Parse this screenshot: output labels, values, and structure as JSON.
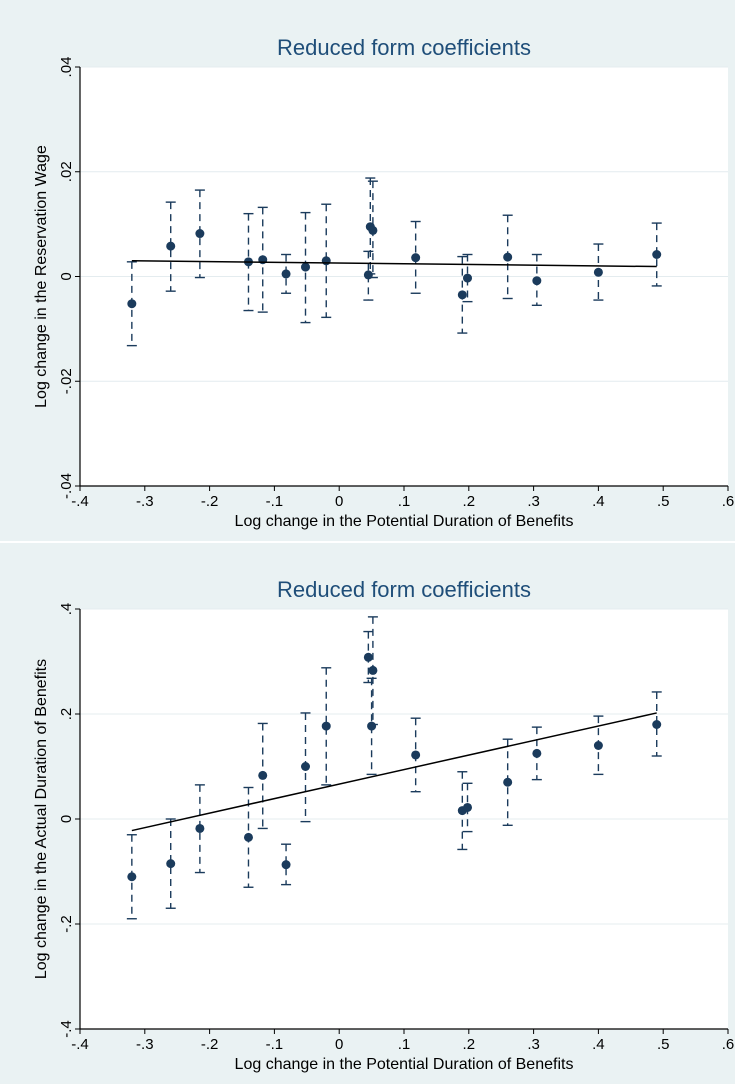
{
  "colors": {
    "outer_background": "#eaf2f3",
    "plot_background": "#ffffff",
    "title": "#1f4e79",
    "markers": "#1b3b5c",
    "fit_line": "#000000",
    "grid": "#e4ecef"
  },
  "chart_data": [
    {
      "type": "scatter",
      "title": "Reduced form coefficients",
      "xlabel": "Log change in the Potential Duration of Benefits",
      "ylabel": "Log change in the Reservation Wage",
      "xlim": [
        -0.4,
        0.6
      ],
      "ylim": [
        -0.04,
        0.04
      ],
      "xticks": [
        -0.4,
        -0.3,
        -0.2,
        -0.1,
        0,
        0.1,
        0.2,
        0.3,
        0.4,
        0.5,
        0.6
      ],
      "xtick_labels": [
        "-.4",
        "-.3",
        "-.2",
        "-.1",
        "0",
        ".1",
        ".2",
        ".3",
        ".4",
        ".5",
        ".6"
      ],
      "yticks": [
        -0.04,
        -0.02,
        0,
        0.02,
        0.04
      ],
      "ytick_labels": [
        "-.04",
        "-.02",
        "0",
        ".02",
        ".04"
      ],
      "grid": "horizontal",
      "series": [
        {
          "type": "scatter_with_error_bars",
          "points": [
            {
              "x": -0.32,
              "y": -0.0052,
              "lo": -0.0132,
              "hi": 0.0028
            },
            {
              "x": -0.26,
              "y": 0.0058,
              "lo": -0.0028,
              "hi": 0.0142
            },
            {
              "x": -0.215,
              "y": 0.0082,
              "lo": -0.0002,
              "hi": 0.0165
            },
            {
              "x": -0.14,
              "y": 0.0028,
              "lo": -0.0065,
              "hi": 0.012
            },
            {
              "x": -0.118,
              "y": 0.0032,
              "lo": -0.0068,
              "hi": 0.0132
            },
            {
              "x": -0.082,
              "y": 0.0005,
              "lo": -0.0032,
              "hi": 0.0042
            },
            {
              "x": -0.052,
              "y": 0.0018,
              "lo": -0.0088,
              "hi": 0.0122
            },
            {
              "x": -0.02,
              "y": 0.003,
              "lo": -0.0078,
              "hi": 0.0138
            },
            {
              "x": 0.045,
              "y": 0.0003,
              "lo": -0.0045,
              "hi": 0.0048
            },
            {
              "x": 0.048,
              "y": 0.0095,
              "lo": 0.0005,
              "hi": 0.0188
            },
            {
              "x": 0.052,
              "y": 0.0088,
              "lo": -0.0002,
              "hi": 0.0182
            },
            {
              "x": 0.118,
              "y": 0.0036,
              "lo": -0.0032,
              "hi": 0.0105
            },
            {
              "x": 0.19,
              "y": -0.0035,
              "lo": -0.0108,
              "hi": 0.0038
            },
            {
              "x": 0.198,
              "y": -0.0003,
              "lo": -0.0048,
              "hi": 0.0042
            },
            {
              "x": 0.26,
              "y": 0.0037,
              "lo": -0.0042,
              "hi": 0.0117
            },
            {
              "x": 0.305,
              "y": -0.0008,
              "lo": -0.0055,
              "hi": 0.0042
            },
            {
              "x": 0.4,
              "y": 0.0008,
              "lo": -0.0045,
              "hi": 0.0062
            },
            {
              "x": 0.49,
              "y": 0.0042,
              "lo": -0.0018,
              "hi": 0.0102
            }
          ]
        },
        {
          "type": "line",
          "x": [
            -0.32,
            0.49
          ],
          "y": [
            0.003,
            0.0019
          ]
        }
      ]
    },
    {
      "type": "scatter",
      "title": "Reduced form coefficients",
      "xlabel": "Log change in the Potential Duration of Benefits",
      "ylabel": "Log change in the Actual Duration of Benefits",
      "xlim": [
        -0.4,
        0.6
      ],
      "ylim": [
        -0.4,
        0.4
      ],
      "xticks": [
        -0.4,
        -0.3,
        -0.2,
        -0.1,
        0,
        0.1,
        0.2,
        0.3,
        0.4,
        0.5,
        0.6
      ],
      "xtick_labels": [
        "-.4",
        "-.3",
        "-.2",
        "-.1",
        "0",
        ".1",
        ".2",
        ".3",
        ".4",
        ".5",
        ".6"
      ],
      "yticks": [
        -0.4,
        -0.2,
        0,
        0.2,
        0.4
      ],
      "ytick_labels": [
        "-.4",
        "-.2",
        "0",
        ".2",
        ".4"
      ],
      "grid": "horizontal",
      "series": [
        {
          "type": "scatter_with_error_bars",
          "points": [
            {
              "x": -0.32,
              "y": -0.11,
              "lo": -0.19,
              "hi": -0.03
            },
            {
              "x": -0.26,
              "y": -0.085,
              "lo": -0.17,
              "hi": 0.0
            },
            {
              "x": -0.215,
              "y": -0.018,
              "lo": -0.102,
              "hi": 0.065
            },
            {
              "x": -0.14,
              "y": -0.035,
              "lo": -0.13,
              "hi": 0.06
            },
            {
              "x": -0.118,
              "y": 0.083,
              "lo": -0.018,
              "hi": 0.182
            },
            {
              "x": -0.082,
              "y": -0.087,
              "lo": -0.125,
              "hi": -0.048
            },
            {
              "x": -0.052,
              "y": 0.1,
              "lo": -0.005,
              "hi": 0.202
            },
            {
              "x": -0.02,
              "y": 0.177,
              "lo": 0.065,
              "hi": 0.288
            },
            {
              "x": 0.045,
              "y": 0.308,
              "lo": 0.26,
              "hi": 0.357
            },
            {
              "x": 0.05,
              "y": 0.177,
              "lo": 0.085,
              "hi": 0.268
            },
            {
              "x": 0.052,
              "y": 0.283,
              "lo": 0.18,
              "hi": 0.385
            },
            {
              "x": 0.118,
              "y": 0.122,
              "lo": 0.052,
              "hi": 0.192
            },
            {
              "x": 0.19,
              "y": 0.016,
              "lo": -0.058,
              "hi": 0.09
            },
            {
              "x": 0.198,
              "y": 0.022,
              "lo": -0.024,
              "hi": 0.068
            },
            {
              "x": 0.26,
              "y": 0.07,
              "lo": -0.012,
              "hi": 0.152
            },
            {
              "x": 0.305,
              "y": 0.125,
              "lo": 0.075,
              "hi": 0.175
            },
            {
              "x": 0.4,
              "y": 0.14,
              "lo": 0.085,
              "hi": 0.196
            },
            {
              "x": 0.49,
              "y": 0.18,
              "lo": 0.12,
              "hi": 0.242
            }
          ]
        },
        {
          "type": "line",
          "x": [
            -0.32,
            0.49
          ],
          "y": [
            -0.022,
            0.202
          ]
        }
      ]
    }
  ]
}
